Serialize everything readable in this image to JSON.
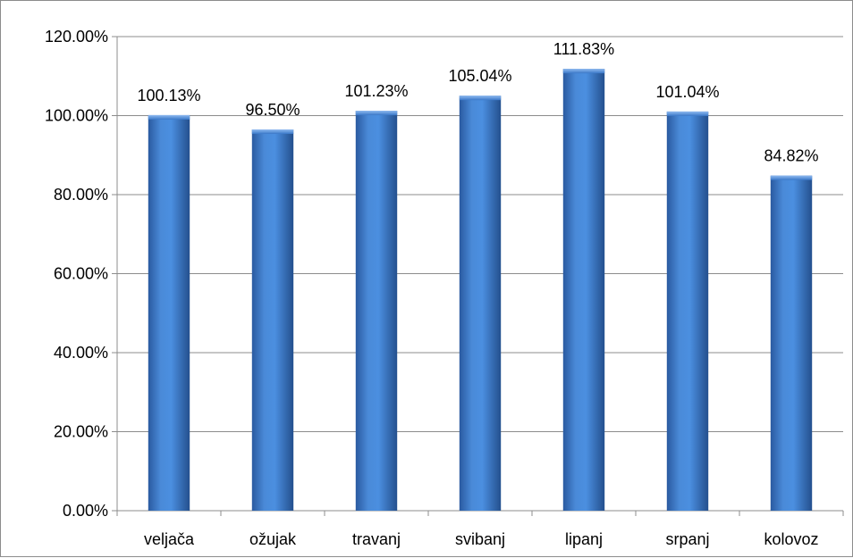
{
  "chart_data": {
    "type": "bar",
    "title": "",
    "xlabel": "",
    "ylabel": "",
    "categories": [
      "veljača",
      "ožujak",
      "travanj",
      "svibanj",
      "lipanj",
      "srpanj",
      "kolovoz"
    ],
    "values": [
      100.13,
      96.5,
      101.23,
      105.04,
      111.83,
      101.04,
      84.82
    ],
    "data_labels": [
      "100.13%",
      "96.50%",
      "101.23%",
      "105.04%",
      "111.83%",
      "101.04%",
      "84.82%"
    ],
    "ylim": [
      0,
      120
    ],
    "y_ticks": [
      0,
      20,
      40,
      60,
      80,
      100,
      120
    ],
    "y_tick_labels": [
      "0.00%",
      "20.00%",
      "40.00%",
      "60.00%",
      "80.00%",
      "100.00%",
      "120.00%"
    ],
    "grid": true,
    "legend": "none",
    "bar_color": "#3a78c8"
  }
}
